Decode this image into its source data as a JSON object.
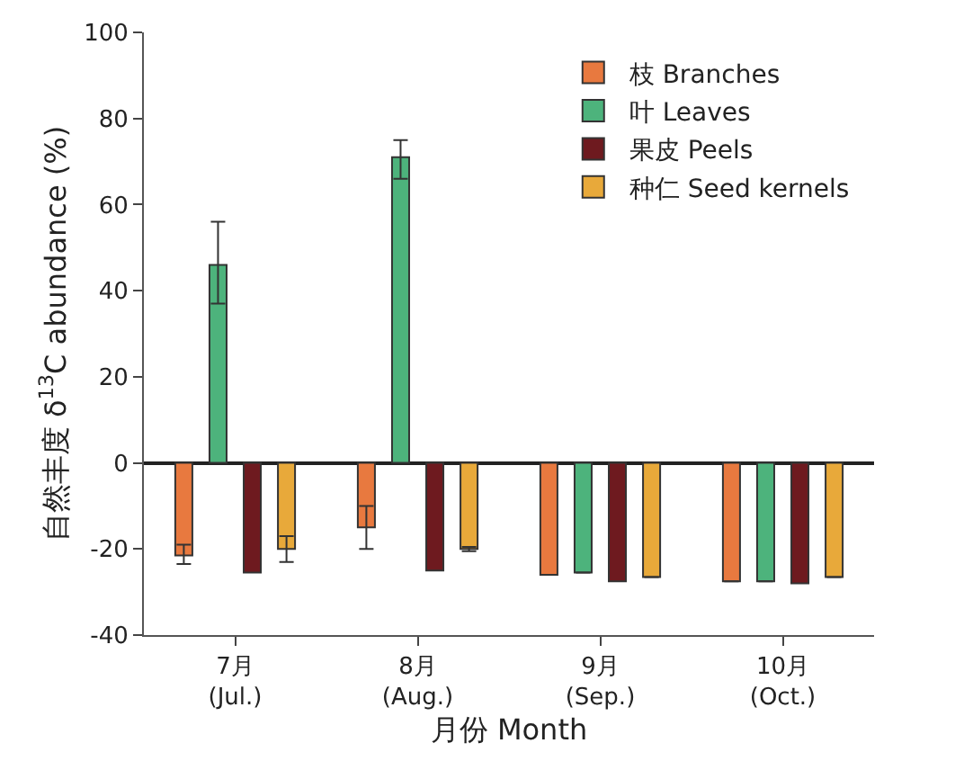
{
  "chart_data": {
    "type": "bar",
    "xlabel": "月份 Month",
    "ylabel": "自然丰度 δ$^{13}$C abundance (%)",
    "categories": [
      "7月\n(Jul.)",
      "8月\n(Aug.)",
      "9月\n(Sep.)",
      "10月\n(Oct.)"
    ],
    "series": [
      {
        "name": "枝 Branches",
        "color": "#e8793f",
        "values": [
          -21.5,
          -15,
          -26,
          -27.5
        ],
        "errors": [
          [
            -23.5,
            -19
          ],
          [
            -20,
            -10
          ],
          null,
          null
        ]
      },
      {
        "name": "叶 Leaves",
        "color": "#4db37c",
        "values": [
          46,
          71,
          -25.5,
          -27.5
        ],
        "errors": [
          [
            37,
            56
          ],
          [
            66,
            75
          ],
          null,
          null
        ]
      },
      {
        "name": "果皮 Peels",
        "color": "#6e1a1f",
        "values": [
          -25.5,
          -25,
          -27.5,
          -28
        ]
      },
      {
        "name": "种仁 Seed kernels",
        "color": "#e8a93a",
        "values": [
          -20,
          -20,
          -26.5,
          -26.5
        ],
        "errors": [
          [
            -23,
            -17
          ],
          [
            -20.5,
            -19.5
          ],
          null,
          null
        ]
      }
    ],
    "ylim": [
      -40,
      100
    ],
    "yticks": [
      -40,
      -20,
      0,
      20,
      40,
      60,
      80,
      100
    ],
    "legend": "top right"
  }
}
